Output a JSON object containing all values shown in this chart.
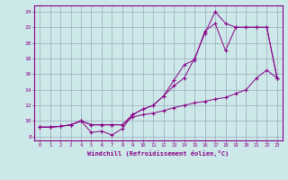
{
  "xlabel": "Windchill (Refroidissement éolien,°C)",
  "bg_color": "#cce8e8",
  "line_color": "#880088",
  "grid_color": "#99aabb",
  "xlim": [
    -0.5,
    23.5
  ],
  "ylim": [
    7.5,
    24.8
  ],
  "xticks": [
    0,
    1,
    2,
    3,
    4,
    5,
    6,
    7,
    8,
    9,
    10,
    11,
    12,
    13,
    14,
    15,
    16,
    17,
    18,
    19,
    20,
    21,
    22,
    23
  ],
  "yticks": [
    8,
    10,
    12,
    14,
    16,
    18,
    20,
    22,
    24
  ],
  "line1_x": [
    0,
    1,
    2,
    3,
    4,
    5,
    6,
    7,
    8,
    9,
    10,
    11,
    12,
    13,
    14,
    15,
    16,
    17,
    18,
    19,
    20,
    21,
    22,
    23
  ],
  "line1_y": [
    9.2,
    9.2,
    9.3,
    9.5,
    10.0,
    8.5,
    8.7,
    8.2,
    9.0,
    10.8,
    11.5,
    12.0,
    13.2,
    15.2,
    17.2,
    17.8,
    21.5,
    22.5,
    19.0,
    22.0,
    22.0,
    22.0,
    22.0,
    15.5
  ],
  "line2_x": [
    0,
    1,
    2,
    3,
    4,
    5,
    6,
    7,
    8,
    9,
    10,
    11,
    12,
    13,
    14,
    15,
    16,
    17,
    18,
    19,
    20,
    21,
    22,
    23
  ],
  "line2_y": [
    9.2,
    9.2,
    9.3,
    9.5,
    10.0,
    9.5,
    9.5,
    9.5,
    9.5,
    10.8,
    11.5,
    12.0,
    13.2,
    14.5,
    15.5,
    18.0,
    21.2,
    24.0,
    22.5,
    22.0,
    22.0,
    22.0,
    22.0,
    15.5
  ],
  "line3_x": [
    0,
    1,
    2,
    3,
    4,
    5,
    6,
    7,
    8,
    9,
    10,
    11,
    12,
    13,
    14,
    15,
    16,
    17,
    18,
    19,
    20,
    21,
    22,
    23
  ],
  "line3_y": [
    9.2,
    9.2,
    9.3,
    9.5,
    10.0,
    9.5,
    9.5,
    9.5,
    9.5,
    10.5,
    10.8,
    11.0,
    11.3,
    11.7,
    12.0,
    12.3,
    12.5,
    12.8,
    13.0,
    13.5,
    14.0,
    15.5,
    16.5,
    15.5
  ]
}
